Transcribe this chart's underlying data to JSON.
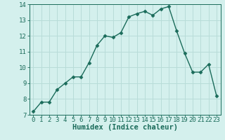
{
  "x": [
    0,
    1,
    2,
    3,
    4,
    5,
    6,
    7,
    8,
    9,
    10,
    11,
    12,
    13,
    14,
    15,
    16,
    17,
    18,
    19,
    20,
    21,
    22,
    23
  ],
  "y": [
    7.2,
    7.8,
    7.8,
    8.6,
    9.0,
    9.4,
    9.4,
    10.3,
    11.4,
    12.0,
    11.9,
    12.2,
    13.2,
    13.4,
    13.55,
    13.3,
    13.7,
    13.85,
    12.3,
    10.9,
    9.7,
    9.7,
    10.2,
    8.2
  ],
  "line_color": "#1a6b5a",
  "marker": "D",
  "marker_size": 2.5,
  "bg_color": "#d4f0ed",
  "grid_color": "#b8dcd8",
  "xlabel": "Humidex (Indice chaleur)",
  "ylim": [
    7,
    14
  ],
  "xlim": [
    -0.5,
    23.5
  ],
  "yticks": [
    7,
    8,
    9,
    10,
    11,
    12,
    13,
    14
  ],
  "xticks": [
    0,
    1,
    2,
    3,
    4,
    5,
    6,
    7,
    8,
    9,
    10,
    11,
    12,
    13,
    14,
    15,
    16,
    17,
    18,
    19,
    20,
    21,
    22,
    23
  ],
  "xlabel_fontsize": 7.5,
  "tick_fontsize": 6.5,
  "line_width": 1.0
}
